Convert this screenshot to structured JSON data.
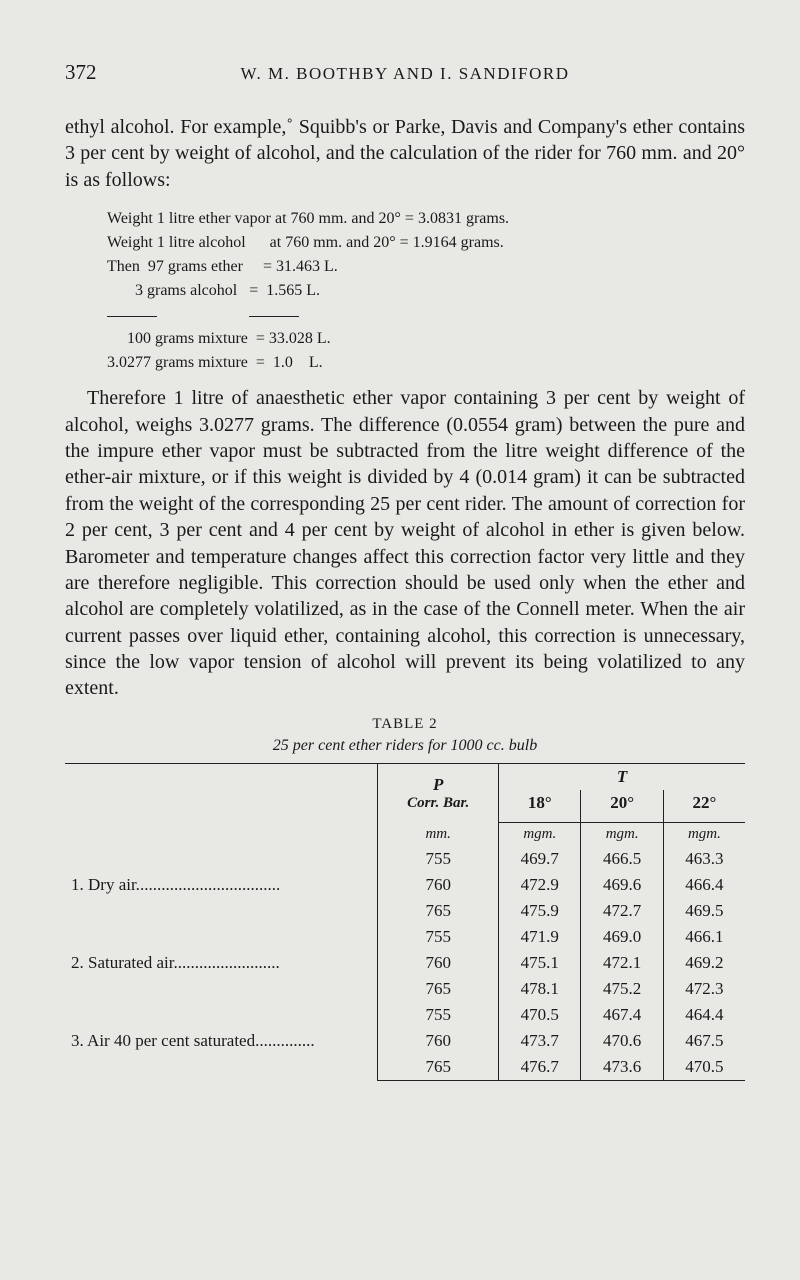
{
  "page_number": "372",
  "running_head": "W. M. BOOTHBY AND I. SANDIFORD",
  "para1": "ethyl alcohol. For example,˚ Squibb's or Parke, Davis and Company's ether contains 3 per cent by weight of alcohol, and the calculation of the rider for 760 mm. and 20° is as follows:",
  "calc": {
    "l1": "Weight 1 litre ether vapor at 760 mm. and 20° = 3.0831 grams.",
    "l2": "Weight 1 litre alcohol      at 760 mm. and 20° = 1.9164 grams.",
    "l3": "Then  97 grams ether     = 31.463 L.",
    "l4": "       3 grams alcohol   =  1.565 L.",
    "l5": "     100 grams mixture  = 33.028 L.",
    "l6": "3.0277 grams mixture  =  1.0    L."
  },
  "para2": "Therefore 1 litre of anaesthetic ether vapor containing 3 per cent by weight of alcohol, weighs 3.0277 grams. The difference (0.0554 gram) between the pure and the impure ether vapor must be subtracted from the litre weight difference of the ether-air mixture, or if this weight is divided by 4 (0.014 gram) it can be subtracted from the weight of the corresponding 25 per cent rider. The amount of correction for 2 per cent, 3 per cent and 4 per cent by weight of alcohol in ether is given below. Barometer and temperature changes affect this correction factor very little and they are therefore negligible. This correction should be used only when the ether and alcohol are completely volatilized, as in the case of the Connell meter. When the air current passes over liquid ether, containing alcohol, this correction is unnecessary, since the low vapor tension of alcohol will prevent its being volatilized to any extent.",
  "table": {
    "caption": "TABLE 2",
    "subcaption": "25 per cent ether riders for 1000 cc. bulb",
    "head_P": "P",
    "head_P2": "Corr. Bar.",
    "head_T": "T",
    "t_cols": [
      "18°",
      "20°",
      "22°"
    ],
    "units": [
      "mm.",
      "mgm.",
      "mgm.",
      "mgm."
    ],
    "groups": [
      {
        "label": "1. Dry air.",
        "rows": [
          [
            "755",
            "469.7",
            "466.5",
            "463.3"
          ],
          [
            "760",
            "472.9",
            "469.6",
            "466.4"
          ],
          [
            "765",
            "475.9",
            "472.7",
            "469.5"
          ]
        ]
      },
      {
        "label": "2. Saturated air.",
        "rows": [
          [
            "755",
            "471.9",
            "469.0",
            "466.1"
          ],
          [
            "760",
            "475.1",
            "472.1",
            "469.2"
          ],
          [
            "765",
            "478.1",
            "475.2",
            "472.3"
          ]
        ]
      },
      {
        "label": "3. Air 40 per cent saturated.",
        "rows": [
          [
            "755",
            "470.5",
            "467.4",
            "464.4"
          ],
          [
            "760",
            "473.7",
            "470.6",
            "467.5"
          ],
          [
            "765",
            "476.7",
            "473.6",
            "470.5"
          ]
        ]
      }
    ]
  }
}
